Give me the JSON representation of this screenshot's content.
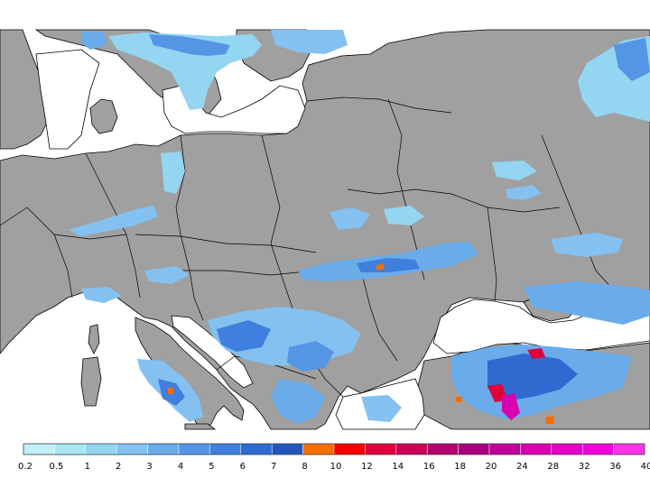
{
  "legend": {
    "labels": [
      "0.2",
      "0.5",
      "1",
      "2",
      "3",
      "4",
      "5",
      "6",
      "7",
      "8",
      "10",
      "12",
      "14",
      "16",
      "18",
      "20",
      "24",
      "28",
      "32",
      "36",
      "40"
    ],
    "colors": [
      "#bfeff7",
      "#a8e6f2",
      "#94d5f2",
      "#84c1f0",
      "#6aabea",
      "#5595e6",
      "#3f7fde",
      "#2f6ad0",
      "#2457bc",
      "#f56f00",
      "#f50000",
      "#e0003b",
      "#cc0057",
      "#b3006f",
      "#a8007e",
      "#c00097",
      "#d900b0",
      "#e600c8",
      "#f000db",
      "#ff33e6",
      "#ff80f2"
    ]
  },
  "map": {
    "land_color": "#a0a0a0",
    "sea_color": "#ffffff",
    "border_color": "#000000"
  }
}
